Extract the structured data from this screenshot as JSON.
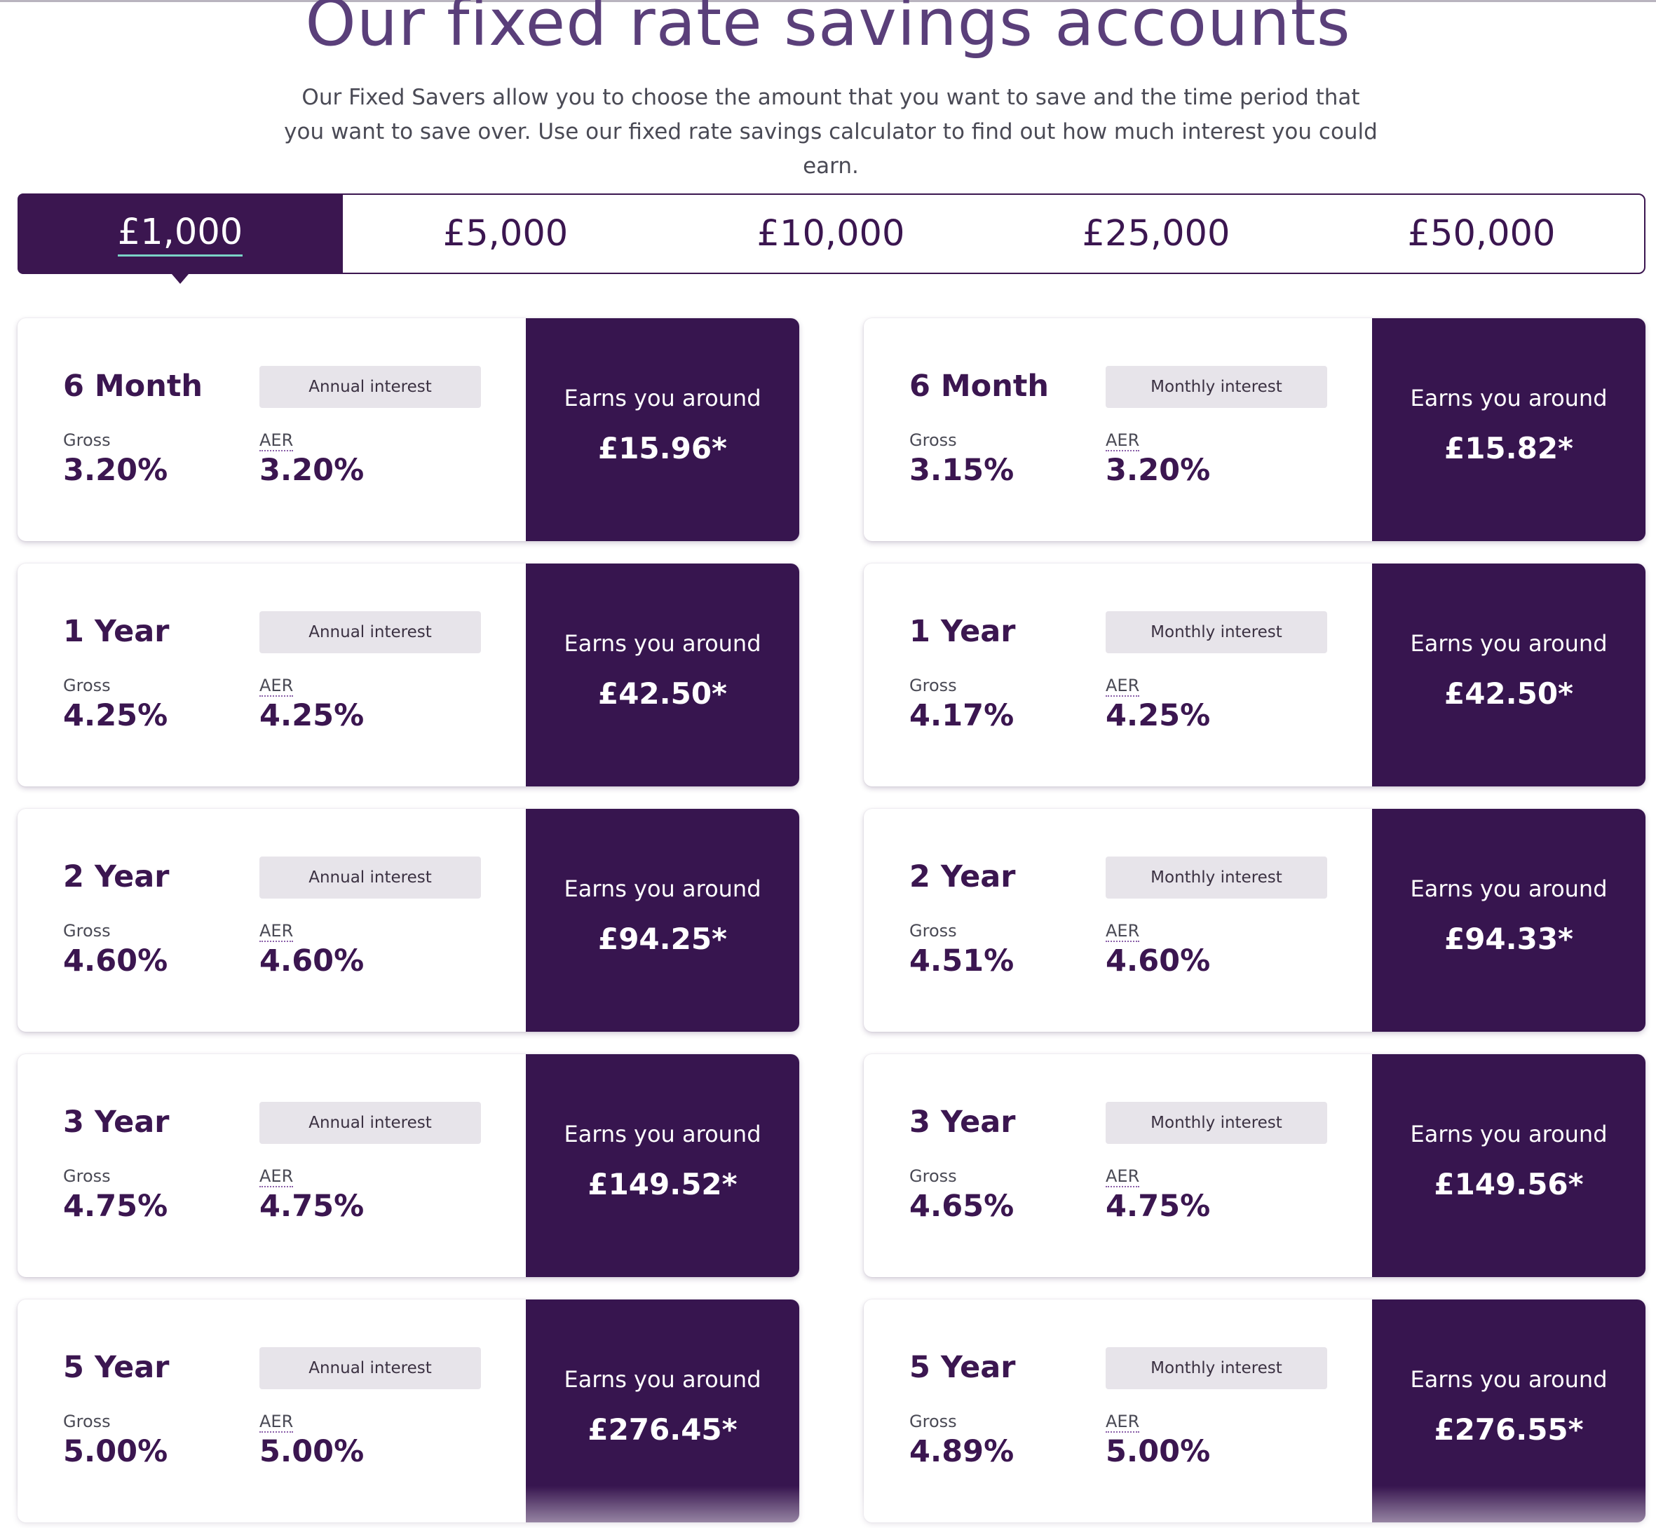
{
  "title": "Our fixed rate savings accounts",
  "intro": "Our Fixed Savers allow you to choose the amount that you want to save and the time period that you want to save over. Use our fixed rate savings calculator to find out how much interest you could earn.",
  "tabs": [
    "£1,000",
    "£5,000",
    "£10,000",
    "£25,000",
    "£50,000"
  ],
  "active_tab": "£1,000",
  "labels": {
    "gross": "Gross",
    "aer": "AER",
    "earns": "Earns you around",
    "annual": "Annual interest",
    "monthly": "Monthly interest"
  },
  "accounts": {
    "annual": [
      {
        "term": "6 Month",
        "gross": "3.20%",
        "aer": "3.20%",
        "earns": "£15.96*"
      },
      {
        "term": "1 Year",
        "gross": "4.25%",
        "aer": "4.25%",
        "earns": "£42.50*"
      },
      {
        "term": "2 Year",
        "gross": "4.60%",
        "aer": "4.60%",
        "earns": "£94.25*"
      },
      {
        "term": "3 Year",
        "gross": "4.75%",
        "aer": "4.75%",
        "earns": "£149.52*"
      },
      {
        "term": "5 Year",
        "gross": "5.00%",
        "aer": "5.00%",
        "earns": "£276.45*"
      }
    ],
    "monthly": [
      {
        "term": "6 Month",
        "gross": "3.15%",
        "aer": "3.20%",
        "earns": "£15.82*"
      },
      {
        "term": "1 Year",
        "gross": "4.17%",
        "aer": "4.25%",
        "earns": "£42.50*"
      },
      {
        "term": "2 Year",
        "gross": "4.51%",
        "aer": "4.60%",
        "earns": "£94.33*"
      },
      {
        "term": "3 Year",
        "gross": "4.65%",
        "aer": "4.75%",
        "earns": "£149.56*"
      },
      {
        "term": "5 Year",
        "gross": "4.89%",
        "aer": "5.00%",
        "earns": "£276.55*"
      }
    ]
  },
  "colors": {
    "brand": "#3b1650",
    "panel": "#37154f",
    "pill": "#e7e4ea",
    "title": "#5a3f7a",
    "tab_underline": "#7bd3c6"
  }
}
